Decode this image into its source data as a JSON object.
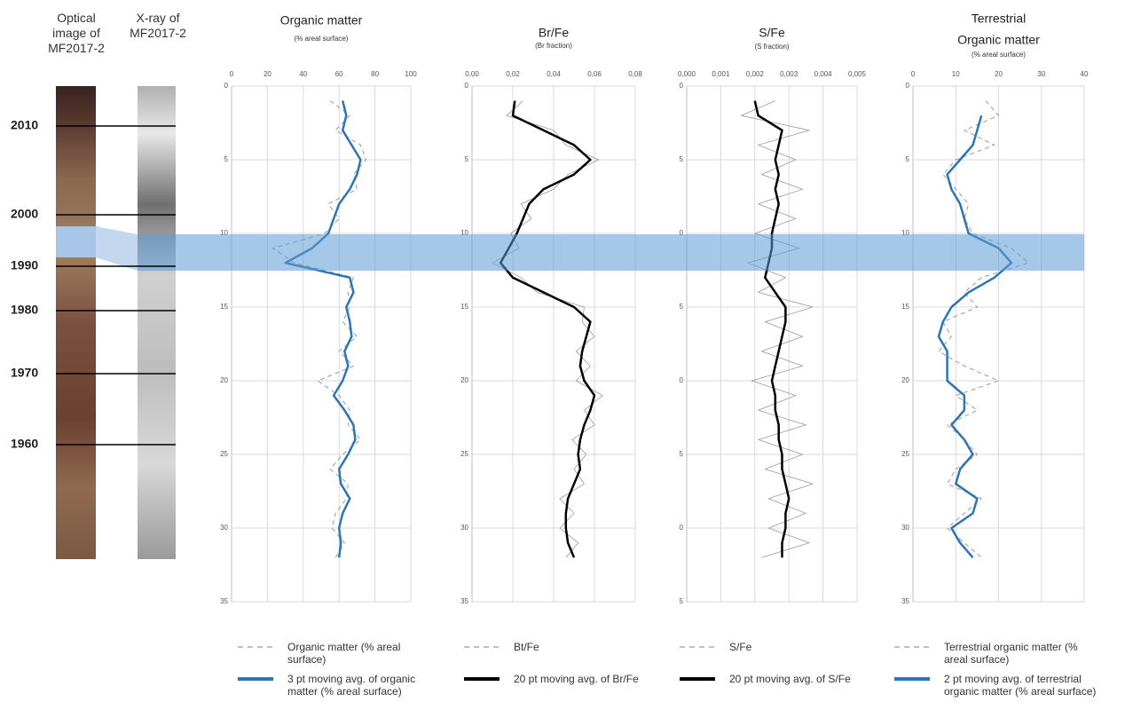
{
  "core": {
    "optical_label": "Optical image of MF2017-2",
    "xray_label": "X-ray of MF2017-2",
    "years": [
      "2010",
      "2000",
      "1990",
      "1980",
      "1970",
      "1960"
    ]
  },
  "chart_data": [
    {
      "type": "line",
      "title": [
        "Organic matter"
      ],
      "subtitle": "(% areal surface)",
      "invert_y": true,
      "grid": true,
      "xlim": [
        0,
        100
      ],
      "xticks": [
        0,
        20,
        40,
        60,
        80,
        100
      ],
      "ylim": [
        0,
        35
      ],
      "yticks": [
        0,
        5,
        10,
        15,
        20,
        25,
        30,
        35
      ],
      "y": [
        1,
        2,
        3,
        4,
        5,
        6,
        7,
        8,
        9,
        10,
        11,
        12,
        13,
        14,
        15,
        16,
        17,
        18,
        19,
        20,
        21,
        22,
        23,
        24,
        25,
        26,
        27,
        28,
        29,
        30,
        31,
        32
      ],
      "series": [
        {
          "name": "Organic matter (% areal surface)",
          "color": "#9a9a9a",
          "style": "dashed",
          "values": [
            55,
            66,
            58,
            72,
            75,
            68,
            70,
            54,
            60,
            52,
            23,
            35,
            68,
            65,
            66,
            62,
            70,
            60,
            68,
            48,
            60,
            66,
            65,
            72,
            62,
            55,
            65,
            64,
            58,
            56,
            63,
            58
          ]
        },
        {
          "name": "3 pt moving avg. of organic matter (% areal surface)",
          "color": "#2e75b6",
          "style": "thick",
          "values": [
            62,
            64,
            62,
            67,
            72,
            70,
            66,
            60,
            57,
            54,
            45,
            30,
            66,
            68,
            64,
            66,
            67,
            63,
            65,
            62,
            57,
            63,
            68,
            69,
            65,
            60,
            61,
            66,
            62,
            60,
            61,
            60
          ]
        }
      ]
    },
    {
      "type": "line",
      "title": [
        "Br/Fe"
      ],
      "subtitle": "(Br fraction)",
      "invert_y": true,
      "grid": true,
      "xlim": [
        0,
        0.08
      ],
      "xticks": [
        {
          "value": 0,
          "label": "0,00"
        },
        {
          "value": 0.02,
          "label": "0,02"
        },
        {
          "value": 0.04,
          "label": "0,04"
        },
        {
          "value": 0.06,
          "label": "0,06"
        },
        {
          "value": 0.08,
          "label": "0,08"
        }
      ],
      "ylim": [
        0,
        35
      ],
      "yticks": [
        0,
        5,
        10,
        15,
        20,
        25,
        30,
        35
      ],
      "y": [
        1,
        2,
        3,
        4,
        5,
        6,
        7,
        8,
        9,
        10,
        11,
        12,
        13,
        14,
        15,
        16,
        17,
        18,
        19,
        20,
        21,
        22,
        23,
        24,
        25,
        26,
        27,
        28,
        29,
        30,
        31,
        32
      ],
      "series": [
        {
          "name": "Bt/Fe",
          "color": "#9a9a9a",
          "style": "thin",
          "values": [
            0.025,
            0.017,
            0.04,
            0.046,
            0.062,
            0.047,
            0.04,
            0.024,
            0.029,
            0.019,
            0.023,
            0.01,
            0.024,
            0.032,
            0.055,
            0.054,
            0.06,
            0.051,
            0.058,
            0.051,
            0.064,
            0.055,
            0.06,
            0.049,
            0.056,
            0.05,
            0.055,
            0.043,
            0.05,
            0.043,
            0.052,
            0.046
          ]
        },
        {
          "name": "20 pt moving avg. of  Br/Fe",
          "color": "#000000",
          "style": "thick",
          "values": [
            0.021,
            0.02,
            0.035,
            0.05,
            0.058,
            0.05,
            0.035,
            0.028,
            0.025,
            0.022,
            0.018,
            0.014,
            0.02,
            0.035,
            0.05,
            0.058,
            0.056,
            0.054,
            0.053,
            0.055,
            0.06,
            0.058,
            0.055,
            0.053,
            0.052,
            0.053,
            0.05,
            0.047,
            0.046,
            0.046,
            0.047,
            0.05
          ]
        }
      ]
    },
    {
      "type": "line",
      "title": [
        "S/Fe"
      ],
      "subtitle": "(S fraction)",
      "invert_y": true,
      "grid": true,
      "xlim": [
        0,
        0.005
      ],
      "xticks": [
        {
          "value": 0,
          "label": "0,000"
        },
        {
          "value": 0.001,
          "label": "0,001"
        },
        {
          "value": 0.002,
          "label": "0,002"
        },
        {
          "value": 0.003,
          "label": "0,003"
        },
        {
          "value": 0.004,
          "label": "0,004"
        },
        {
          "value": 0.005,
          "label": "0,005"
        }
      ],
      "ylim": [
        0,
        35
      ],
      "yticks": [
        0,
        5,
        {
          "value": 10,
          "label": "0"
        },
        {
          "value": 15,
          "label": "5"
        },
        {
          "value": 20,
          "label": "0"
        },
        {
          "value": 25,
          "label": "5"
        },
        {
          "value": 30,
          "label": "0"
        },
        {
          "value": 35,
          "label": "5"
        }
      ],
      "y": [
        1,
        2,
        3,
        4,
        5,
        6,
        7,
        8,
        9,
        10,
        11,
        12,
        13,
        14,
        15,
        16,
        17,
        18,
        19,
        20,
        21,
        22,
        23,
        24,
        25,
        26,
        27,
        28,
        29,
        30,
        31,
        32
      ],
      "series": [
        {
          "name": "S/Fe",
          "color": "#9a9a9a",
          "style": "thin",
          "values": [
            0.0026,
            0.0016,
            0.0036,
            0.0021,
            0.0032,
            0.0022,
            0.0034,
            0.0021,
            0.0032,
            0.002,
            0.0033,
            0.0018,
            0.0029,
            0.0021,
            0.0037,
            0.0023,
            0.0034,
            0.0022,
            0.0034,
            0.0019,
            0.0032,
            0.0021,
            0.0035,
            0.0021,
            0.0034,
            0.0023,
            0.0037,
            0.0024,
            0.0035,
            0.0024,
            0.0036,
            0.0022
          ]
        },
        {
          "name": "20 pt moving avg. of S/Fe",
          "color": "#000000",
          "style": "thick",
          "values": [
            0.002,
            0.0021,
            0.0028,
            0.0027,
            0.0026,
            0.0027,
            0.0026,
            0.0027,
            0.0026,
            0.0025,
            0.0025,
            0.0024,
            0.0023,
            0.0026,
            0.0029,
            0.0029,
            0.0028,
            0.0027,
            0.0026,
            0.0025,
            0.0026,
            0.0026,
            0.0027,
            0.0027,
            0.0028,
            0.0028,
            0.0029,
            0.003,
            0.0029,
            0.0029,
            0.0028,
            0.0028
          ]
        }
      ]
    },
    {
      "type": "line",
      "title": [
        "Terrestrial",
        "Organic matter"
      ],
      "subtitle": "(% areal surface)",
      "invert_y": true,
      "grid": true,
      "xlim": [
        0,
        40
      ],
      "xticks": [
        0,
        10,
        20,
        30,
        40
      ],
      "ylim": [
        0,
        35
      ],
      "yticks": [
        0,
        5,
        10,
        15,
        20,
        25,
        30,
        35
      ],
      "y": [
        1,
        2,
        3,
        4,
        5,
        6,
        7,
        8,
        9,
        10,
        11,
        12,
        13,
        14,
        15,
        16,
        17,
        18,
        19,
        20,
        21,
        22,
        23,
        24,
        25,
        26,
        27,
        28,
        29,
        30,
        31,
        32
      ],
      "series": [
        {
          "name": "Terrestrial organic  matter (% areal surface)",
          "color": "#9a9a9a",
          "style": "dashed",
          "values": [
            17,
            20,
            12,
            19,
            10,
            7,
            10,
            13,
            12,
            14,
            23,
            27,
            16,
            12,
            15,
            7,
            9,
            6,
            12,
            20,
            10,
            15,
            8,
            12,
            15,
            10,
            8,
            16,
            12,
            8,
            12,
            16
          ]
        },
        {
          "name": "2 pt moving avg. of terrestrial organic matter (% areal surface)",
          "color": "#2e75b6",
          "style": "thick",
          "values": [
            null,
            16,
            15,
            14,
            11,
            8,
            9,
            11,
            12,
            13,
            20,
            23,
            19,
            13,
            9,
            7,
            6,
            8,
            8,
            8,
            12,
            12,
            9,
            12,
            14,
            11,
            10,
            15,
            14,
            9,
            11,
            14
          ]
        }
      ]
    }
  ]
}
